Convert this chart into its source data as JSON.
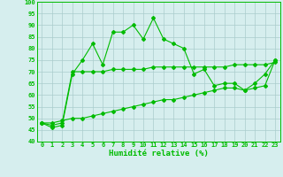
{
  "xlabel": "Humidité relative (%)",
  "background_color": "#d6eeee",
  "grid_color": "#aacccc",
  "line_color": "#00bb00",
  "x_ticks": [
    0,
    1,
    2,
    3,
    4,
    5,
    6,
    7,
    8,
    9,
    10,
    11,
    12,
    13,
    14,
    15,
    16,
    17,
    18,
    19,
    20,
    21,
    22,
    23
  ],
  "ylim": [
    40,
    100
  ],
  "xlim": [
    -0.5,
    23.5
  ],
  "yticks": [
    40,
    45,
    50,
    55,
    60,
    65,
    70,
    75,
    80,
    85,
    90,
    95,
    100
  ],
  "series1_y": [
    48,
    46,
    47,
    69,
    75,
    82,
    73,
    87,
    87,
    90,
    84,
    93,
    84,
    82,
    80,
    69,
    71,
    64,
    65,
    65,
    62,
    65,
    69,
    75
  ],
  "series2_y": [
    48,
    47,
    48,
    70,
    70,
    70,
    70,
    71,
    71,
    71,
    71,
    72,
    72,
    72,
    72,
    72,
    72,
    72,
    72,
    73,
    73,
    73,
    73,
    74
  ],
  "series3_y": [
    48,
    48,
    49,
    50,
    50,
    51,
    52,
    53,
    54,
    55,
    56,
    57,
    58,
    58,
    59,
    60,
    61,
    62,
    63,
    63,
    62,
    63,
    64,
    75
  ],
  "tick_fontsize": 5.0,
  "xlabel_fontsize": 6.5,
  "marker_size": 2.0,
  "linewidth": 0.8
}
